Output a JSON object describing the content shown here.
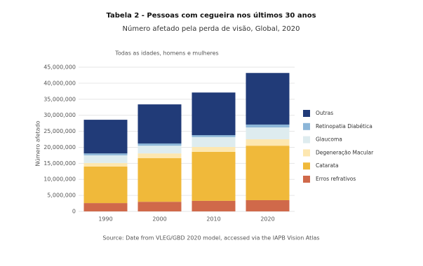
{
  "chart_data": {
    "type": "stacked_bar",
    "title": "Tabela 2 - Pessoas com cegueira nos últimos 30 anos",
    "subtitle": "Número afetado pela perda de visão, Global, 2020",
    "caption": "Todas as idades, homens e mulheres",
    "y_label": "Número afetado",
    "source": "Source: Date from VLEG/GBD 2020 model, accessed via the IAPB Vision Atlas",
    "categories": [
      "1990",
      "2000",
      "2010",
      "2020"
    ],
    "series": [
      {
        "name": "Erros refrativos",
        "color": "#d0694a",
        "values": [
          2600000,
          3000000,
          3300000,
          3500000
        ]
      },
      {
        "name": "Catarata",
        "color": "#f0b93a",
        "values": [
          11400000,
          13600000,
          15300000,
          17000000
        ]
      },
      {
        "name": "Degeneração Macular",
        "color": "#fde7b0",
        "values": [
          1100000,
          1500000,
          1500000,
          2000000
        ]
      },
      {
        "name": "Glaucoma",
        "color": "#deecef",
        "values": [
          2400000,
          2400000,
          3100000,
          3700000
        ]
      },
      {
        "name": "Retinopatia Diabética",
        "color": "#8cb6d8",
        "values": [
          600000,
          700000,
          600000,
          900000
        ]
      },
      {
        "name": "Outras",
        "color": "#213b78",
        "values": [
          10500000,
          12200000,
          13300000,
          16100000
        ]
      }
    ],
    "ylim": [
      0,
      45000000
    ],
    "yticks": [
      0,
      {
        "value": 5000000,
        "label": "5,000,000"
      },
      {
        "value": 10000000,
        "label": "10,000,000"
      },
      {
        "value": 15000000,
        "label": "15,000,000"
      },
      {
        "value": 20000000,
        "label": "20,000,000"
      },
      {
        "value": 25000000,
        "label": "25,000,000"
      },
      {
        "value": 30000000,
        "label": "30,000,000"
      },
      {
        "value": 35000000,
        "label": "35,000,000"
      },
      {
        "value": 40000000,
        "label": "40,000,000"
      },
      {
        "value": 45000000,
        "label": "45,000,000"
      }
    ],
    "grid": true,
    "legend": "right"
  }
}
